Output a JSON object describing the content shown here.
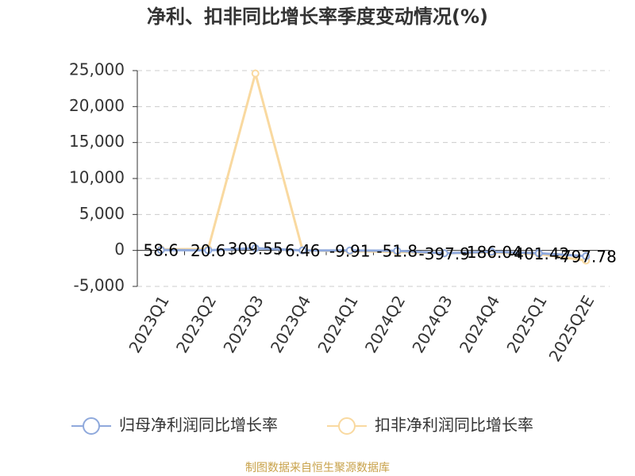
{
  "chart_data": {
    "type": "line",
    "title": "净利、扣非同比增长率季度变动情况(%)",
    "categories": [
      "2023Q1",
      "2023Q2",
      "2023Q3",
      "2023Q4",
      "2024Q1",
      "2024Q2",
      "2024Q3",
      "2024Q4",
      "2025Q1",
      "2025Q2E"
    ],
    "series": [
      {
        "name": "归母净利润同比增长率",
        "color": "#8fa9dc",
        "values": [
          58.6,
          20.6,
          309.55,
          6.46,
          -9.91,
          -51.8,
          -397.9,
          -186.04,
          -401.42,
          -797.78
        ]
      },
      {
        "name": "扣非净利润同比增长率",
        "color": "#f9d9a0",
        "values": [
          150,
          200,
          24600,
          0,
          -100,
          -200,
          -400,
          -300,
          -500,
          -1400
        ]
      }
    ],
    "ylim": [
      -5000,
      25000
    ],
    "yticks": [
      {
        "value": -5000,
        "label": "-5,000"
      },
      0,
      {
        "value": 5000,
        "label": "5,000"
      },
      {
        "value": 10000,
        "label": "10,000"
      },
      {
        "value": 15000,
        "label": "15,000"
      },
      {
        "value": 20000,
        "label": "20,000"
      },
      {
        "value": 25000,
        "label": "25,000"
      }
    ],
    "grid": true,
    "source": "制图数据来自恒生聚源数据库"
  }
}
